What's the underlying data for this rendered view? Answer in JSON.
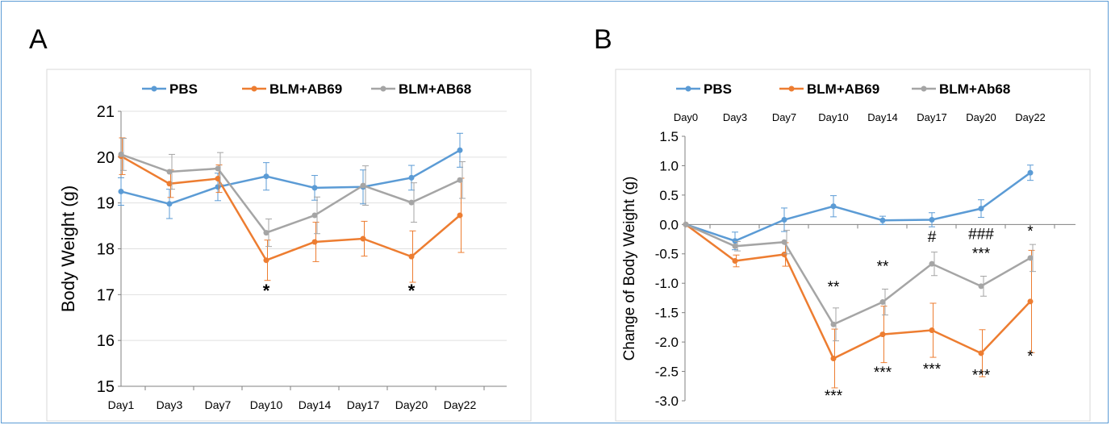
{
  "panels": {
    "a_letter": "A",
    "b_letter": "B"
  },
  "chart_data": [
    {
      "type": "line",
      "title": "",
      "xlabel": "",
      "ylabel": "Body Weight (g)",
      "ylim": [
        15,
        21
      ],
      "yticks": [
        "15",
        "16",
        "17",
        "18",
        "19",
        "20",
        "21"
      ],
      "categories": [
        "Day1",
        "Day3",
        "Day7",
        "Day10",
        "Day14",
        "Day17",
        "Day20",
        "Day22"
      ],
      "legend_position": "top",
      "grid": true,
      "series": [
        {
          "name": "PBS",
          "color": "#5b9bd5",
          "values": [
            19.25,
            18.98,
            19.35,
            19.58,
            19.33,
            19.35,
            19.55,
            20.15
          ],
          "errors": [
            0.3,
            0.32,
            0.3,
            0.3,
            0.27,
            0.37,
            0.27,
            0.37
          ]
        },
        {
          "name": "BLM+AB69",
          "color": "#ed7d31",
          "values": [
            20.02,
            19.42,
            19.53,
            17.75,
            18.15,
            18.22,
            17.83,
            18.73
          ],
          "errors": [
            0.4,
            0.3,
            0.3,
            0.44,
            0.43,
            0.38,
            0.56,
            0.81
          ]
        },
        {
          "name": "BLM+AB68",
          "color": "#a5a5a5",
          "values": [
            20.06,
            19.68,
            19.75,
            18.35,
            18.73,
            19.38,
            19.01,
            19.5
          ],
          "errors": [
            0.35,
            0.38,
            0.35,
            0.3,
            0.4,
            0.43,
            0.43,
            0.4
          ]
        }
      ],
      "annotations": [
        {
          "category": "Day10",
          "y": 16.95,
          "text": "*"
        },
        {
          "category": "Day20",
          "y": 16.95,
          "text": "*"
        }
      ]
    },
    {
      "type": "line",
      "title": "",
      "xlabel": "",
      "ylabel": "Change of Body Weight (g)",
      "ylim": [
        -3.0,
        1.5
      ],
      "yticks": [
        "1.5",
        "1.0",
        "0.5",
        "0.0",
        "-0.5",
        "-1.0",
        "-1.5",
        "-2.0",
        "-2.5",
        "-3.0"
      ],
      "categories": [
        "Day0",
        "Day3",
        "Day7",
        "Day10",
        "Day14",
        "Day17",
        "Day20",
        "Day22"
      ],
      "x_axis_labels_position": "top",
      "legend_position": "top",
      "grid": false,
      "series": [
        {
          "name": "PBS",
          "color": "#5b9bd5",
          "values": [
            0.0,
            -0.28,
            0.08,
            0.31,
            0.07,
            0.08,
            0.27,
            0.88
          ],
          "errors": [
            0.0,
            0.15,
            0.2,
            0.18,
            0.07,
            0.12,
            0.15,
            0.13
          ]
        },
        {
          "name": "BLM+AB69",
          "color": "#ed7d31",
          "values": [
            0.0,
            -0.62,
            -0.51,
            -2.28,
            -1.87,
            -1.8,
            -2.19,
            -1.31
          ],
          "errors": [
            0.0,
            0.1,
            0.2,
            0.5,
            0.48,
            0.46,
            0.4,
            0.87
          ]
        },
        {
          "name": "BLM+Ab68",
          "color": "#a5a5a5",
          "values": [
            0.0,
            -0.37,
            -0.3,
            -1.7,
            -1.32,
            -0.67,
            -1.05,
            -0.57
          ],
          "errors": [
            0.0,
            0.08,
            0.2,
            0.28,
            0.22,
            0.2,
            0.17,
            0.23
          ]
        }
      ],
      "annotations": [
        {
          "category": "Day10",
          "y": -1.15,
          "text": "**"
        },
        {
          "category": "Day14",
          "y": -0.8,
          "text": "**"
        },
        {
          "category": "Day17",
          "y": -0.3,
          "text": "#"
        },
        {
          "category": "Day20",
          "y": -0.25,
          "text": "###"
        },
        {
          "category": "Day20",
          "y": -0.58,
          "text": "***"
        },
        {
          "category": "Day22",
          "y": -0.2,
          "text": "*"
        },
        {
          "category": "Day10",
          "y": -3.0,
          "text": "***"
        },
        {
          "category": "Day14",
          "y": -2.6,
          "text": "***"
        },
        {
          "category": "Day17",
          "y": -2.55,
          "text": "***"
        },
        {
          "category": "Day20",
          "y": -2.65,
          "text": "***"
        },
        {
          "category": "Day22",
          "y": -2.33,
          "text": "*"
        }
      ]
    }
  ]
}
